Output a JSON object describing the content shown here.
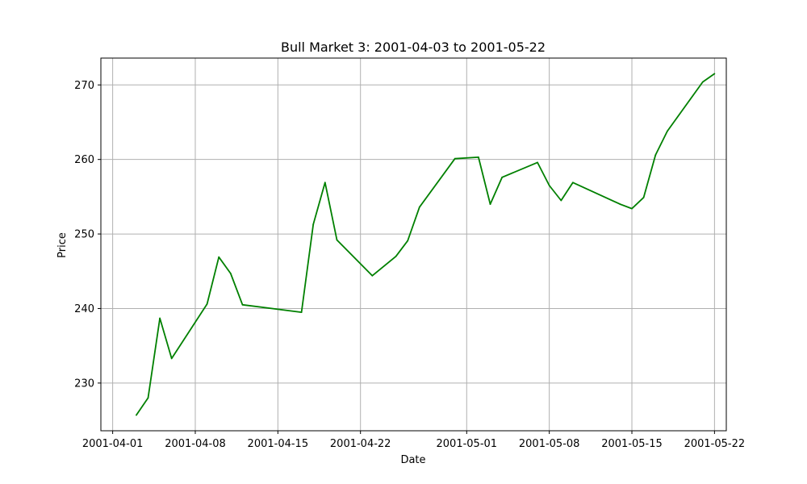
{
  "chart_data": {
    "type": "line",
    "title": "Bull Market 3: 2001-04-03 to 2001-05-22",
    "xlabel": "Date",
    "ylabel": "Price",
    "grid": true,
    "line_color": "#008000",
    "x_ticks": [
      "2001-04-01",
      "2001-04-08",
      "2001-04-15",
      "2001-04-22",
      "2001-05-01",
      "2001-05-08",
      "2001-05-15",
      "2001-05-22"
    ],
    "y_ticks": [
      230,
      240,
      250,
      260,
      270
    ],
    "xlim": [
      "2001-03-31",
      "2001-05-23"
    ],
    "ylim": [
      223.6,
      273.6
    ],
    "series": [
      {
        "x": [
          "2001-04-03",
          "2001-04-04",
          "2001-04-05",
          "2001-04-06",
          "2001-04-09",
          "2001-04-10",
          "2001-04-11",
          "2001-04-12",
          "2001-04-17",
          "2001-04-18",
          "2001-04-19",
          "2001-04-20",
          "2001-04-23",
          "2001-04-25",
          "2001-04-26",
          "2001-04-27",
          "2001-04-30",
          "2001-05-02",
          "2001-05-03",
          "2001-05-04",
          "2001-05-07",
          "2001-05-08",
          "2001-05-09",
          "2001-05-10",
          "2001-05-14",
          "2001-05-15",
          "2001-05-16",
          "2001-05-17",
          "2001-05-18",
          "2001-05-21",
          "2001-05-22"
        ],
        "y": [
          225.7,
          228.0,
          238.7,
          233.3,
          240.6,
          246.9,
          244.7,
          240.5,
          239.5,
          251.3,
          256.9,
          249.2,
          244.4,
          247.0,
          249.1,
          253.6,
          260.1,
          260.3,
          254.0,
          257.6,
          259.6,
          256.5,
          254.5,
          256.9,
          254.0,
          253.4,
          254.9,
          260.6,
          263.8,
          270.4,
          271.5
        ]
      }
    ]
  }
}
